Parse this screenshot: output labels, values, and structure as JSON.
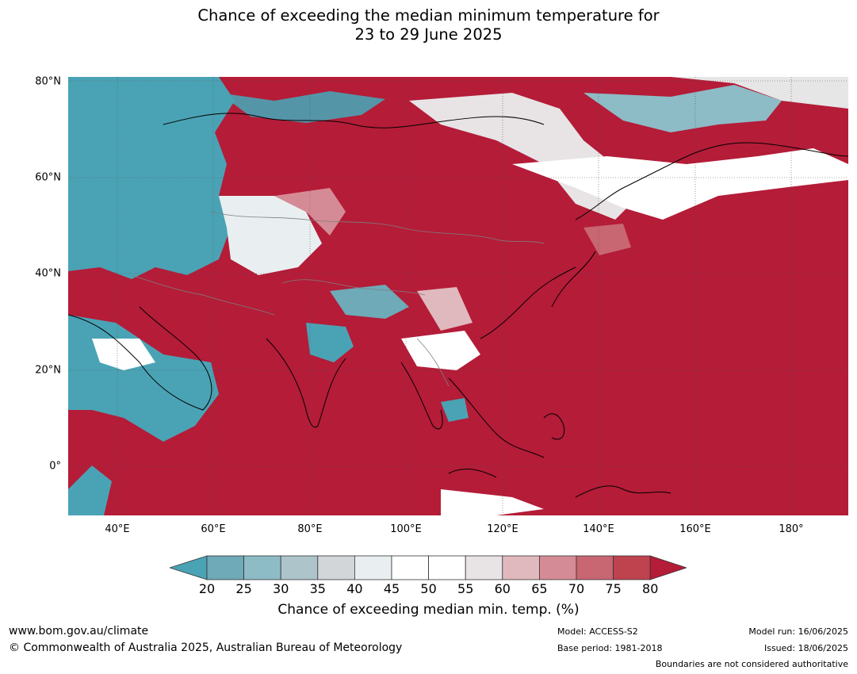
{
  "title": {
    "line1": "Chance of exceeding the median minimum temperature for",
    "line2": "23 to 29 June 2025"
  },
  "map": {
    "lat_labels": [
      "80°N",
      "60°N",
      "40°N",
      "20°N",
      "0°"
    ],
    "lon_labels": [
      "40°E",
      "60°E",
      "80°E",
      "100°E",
      "120°E",
      "140°E",
      "160°E",
      "180°"
    ],
    "colors": {
      "ocean_land_high": "#b41c38",
      "below_median": "#4aa3b5",
      "neutral": "#e6e6e6",
      "coastline": "#000000",
      "borders": "#7f7f7f"
    }
  },
  "colorbar": {
    "label": "Chance of exceeding median min. temp. (%)",
    "ticks": [
      "20",
      "25",
      "30",
      "35",
      "40",
      "45",
      "50",
      "55",
      "60",
      "65",
      "70",
      "75",
      "80"
    ],
    "colors": [
      "#4aa3b5",
      "#6eaab8",
      "#8dbbc6",
      "#adc4cb",
      "#d2d6d8",
      "#e9eff1",
      "#ffffff",
      "#ffffff",
      "#e8e4e5",
      "#e0b9be",
      "#d58b95",
      "#c86672",
      "#bf424f",
      "#b41c38"
    ]
  },
  "footer": {
    "url": "www.bom.gov.au/climate",
    "copyright": "© Commonwealth of Australia 2025, Australian Bureau of Meteorology",
    "model": "Model: ACCESS-S2",
    "base_period": "Base period: 1981-2018",
    "model_run": "Model run: 16/06/2025",
    "issued": "Issued: 18/06/2025",
    "disclaimer": "Boundaries are not considered authoritative"
  }
}
